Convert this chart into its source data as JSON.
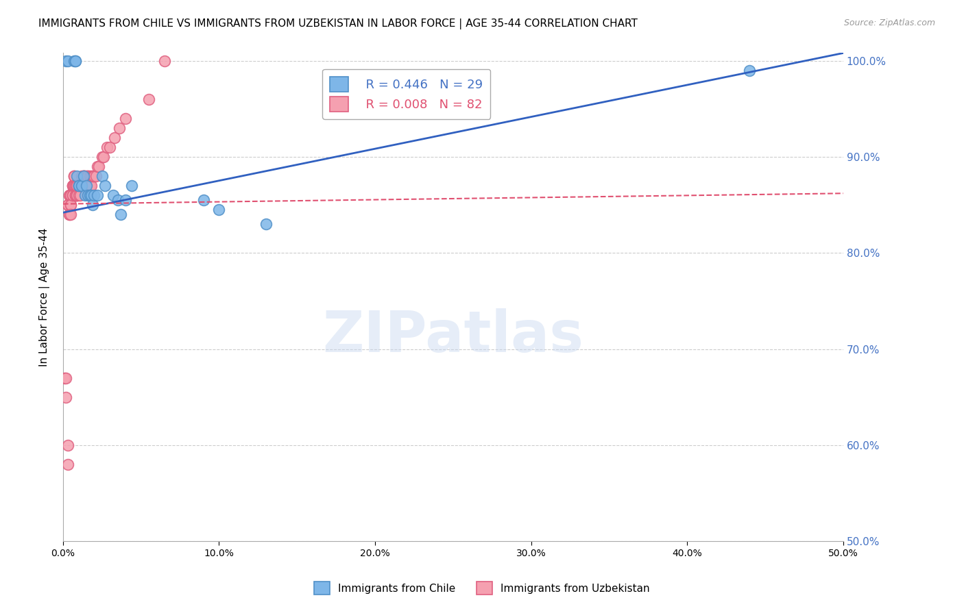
{
  "title": "IMMIGRANTS FROM CHILE VS IMMIGRANTS FROM UZBEKISTAN IN LABOR FORCE | AGE 35-44 CORRELATION CHART",
  "source": "Source: ZipAtlas.com",
  "ylabel": "In Labor Force | Age 35-44",
  "xlabel": "",
  "xlim": [
    0.0,
    0.5
  ],
  "ylim": [
    0.5,
    1.008
  ],
  "yticks": [
    0.5,
    0.6,
    0.7,
    0.8,
    0.9,
    1.0
  ],
  "ytick_labels": [
    "50.0%",
    "60.0%",
    "70.0%",
    "80.0%",
    "90.0%",
    "100.0%"
  ],
  "xticks": [
    0.0,
    0.1,
    0.2,
    0.3,
    0.4,
    0.5
  ],
  "xtick_labels": [
    "0.0%",
    "10.0%",
    "20.0%",
    "30.0%",
    "40.0%",
    "50.0%"
  ],
  "grid_color": "#cccccc",
  "watermark": "ZIPatlas",
  "legend_chile_r": "R = 0.446",
  "legend_chile_n": "N = 29",
  "legend_uzb_r": "R = 0.008",
  "legend_uzb_n": "N = 82",
  "chile_color": "#7EB6E8",
  "uzbek_color": "#F5A0B0",
  "chile_edge": "#5090C8",
  "uzbek_edge": "#E06080",
  "trend_chile_color": "#3060C0",
  "trend_uzbek_color": "#E05070",
  "chile_x": [
    0.002,
    0.003,
    0.007,
    0.008,
    0.008,
    0.009,
    0.01,
    0.01,
    0.012,
    0.013,
    0.014,
    0.015,
    0.016,
    0.017,
    0.018,
    0.019,
    0.02,
    0.022,
    0.025,
    0.027,
    0.032,
    0.035,
    0.037,
    0.04,
    0.044,
    0.09,
    0.1,
    0.13,
    0.44
  ],
  "chile_y": [
    1.0,
    1.0,
    1.0,
    1.0,
    1.0,
    0.88,
    0.87,
    0.87,
    0.87,
    0.88,
    0.86,
    0.87,
    0.86,
    0.86,
    0.86,
    0.85,
    0.86,
    0.86,
    0.88,
    0.87,
    0.86,
    0.855,
    0.84,
    0.855,
    0.87,
    0.855,
    0.845,
    0.83,
    0.99
  ],
  "uzbek_x": [
    0.001,
    0.002,
    0.002,
    0.003,
    0.003,
    0.003,
    0.003,
    0.004,
    0.004,
    0.004,
    0.004,
    0.005,
    0.005,
    0.005,
    0.005,
    0.005,
    0.006,
    0.006,
    0.006,
    0.006,
    0.006,
    0.007,
    0.007,
    0.007,
    0.007,
    0.007,
    0.007,
    0.007,
    0.008,
    0.008,
    0.008,
    0.008,
    0.008,
    0.009,
    0.009,
    0.009,
    0.009,
    0.009,
    0.009,
    0.01,
    0.01,
    0.01,
    0.01,
    0.011,
    0.011,
    0.011,
    0.011,
    0.012,
    0.012,
    0.012,
    0.012,
    0.013,
    0.013,
    0.013,
    0.013,
    0.014,
    0.014,
    0.014,
    0.015,
    0.015,
    0.015,
    0.016,
    0.016,
    0.017,
    0.017,
    0.018,
    0.018,
    0.019,
    0.02,
    0.02,
    0.021,
    0.022,
    0.023,
    0.025,
    0.026,
    0.028,
    0.03,
    0.033,
    0.036,
    0.04,
    0.055,
    0.065
  ],
  "uzbek_y": [
    0.67,
    0.67,
    0.65,
    0.6,
    0.58,
    0.85,
    0.85,
    0.86,
    0.86,
    0.84,
    0.84,
    0.86,
    0.86,
    0.85,
    0.85,
    0.84,
    0.87,
    0.87,
    0.86,
    0.86,
    0.87,
    0.87,
    0.87,
    0.88,
    0.88,
    0.88,
    0.87,
    0.87,
    0.87,
    0.87,
    0.86,
    0.86,
    0.86,
    0.86,
    0.86,
    0.87,
    0.87,
    0.86,
    0.87,
    0.86,
    0.87,
    0.87,
    0.87,
    0.87,
    0.87,
    0.86,
    0.87,
    0.87,
    0.87,
    0.87,
    0.88,
    0.88,
    0.88,
    0.88,
    0.88,
    0.88,
    0.87,
    0.87,
    0.87,
    0.87,
    0.88,
    0.88,
    0.88,
    0.88,
    0.87,
    0.87,
    0.88,
    0.88,
    0.88,
    0.88,
    0.88,
    0.89,
    0.89,
    0.9,
    0.9,
    0.91,
    0.91,
    0.92,
    0.93,
    0.94,
    0.96,
    1.0
  ],
  "trend_chile_x0": 0.0,
  "trend_chile_y0": 0.842,
  "trend_chile_x1": 0.5,
  "trend_chile_y1": 1.008,
  "trend_uzbek_x0": 0.0,
  "trend_uzbek_x1": 0.5,
  "trend_uzbek_y0": 0.851,
  "trend_uzbek_y1": 0.862
}
